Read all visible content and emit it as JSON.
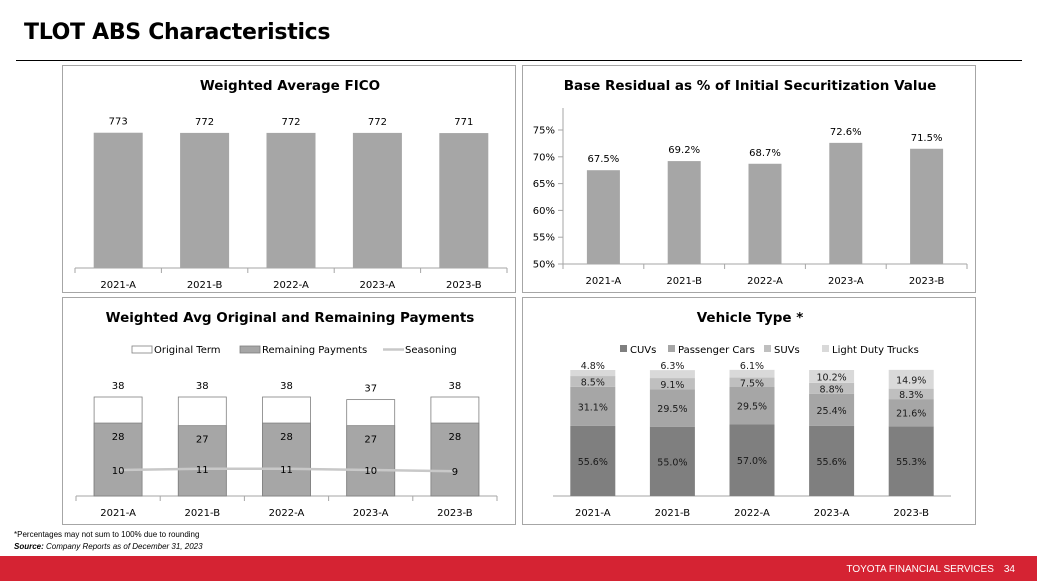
{
  "page": {
    "title": "TLOT ABS Characteristics",
    "footnote": "*Percentages may not sum to 100% due to rounding",
    "source_label": "Source:",
    "source_text": " Company Reports as of December 31, 2023",
    "footer_company": "TOYOTA FINANCIAL SERVICES",
    "page_number": "34",
    "brand_color": "#d52333"
  },
  "chart_data": [
    {
      "id": "fico",
      "type": "bar",
      "title": "Weighted Average FICO",
      "categories": [
        "2021-A",
        "2021-B",
        "2022-A",
        "2023-A",
        "2023-B"
      ],
      "values": [
        773,
        772,
        772,
        772,
        771
      ],
      "data_labels": [
        "773",
        "772",
        "772",
        "772",
        "771"
      ],
      "xlabel": "",
      "ylabel": "",
      "ylim": [
        0,
        800
      ],
      "y_axis_visible": false,
      "grid": false,
      "bar_color": "#a6a6a6"
    },
    {
      "id": "residual",
      "type": "bar",
      "title": "Base Residual as % of Initial Securitization Value",
      "categories": [
        "2021-A",
        "2021-B",
        "2022-A",
        "2023-A",
        "2023-B"
      ],
      "values": [
        67.5,
        69.2,
        68.7,
        72.6,
        71.5
      ],
      "data_labels": [
        "67.5%",
        "69.2%",
        "68.7%",
        "72.6%",
        "71.5%"
      ],
      "xlabel": "",
      "ylabel": "",
      "ylim": [
        50,
        77
      ],
      "yticks": [
        50,
        55,
        60,
        65,
        70,
        75
      ],
      "ytick_labels": [
        "50%",
        "55%",
        "60%",
        "65%",
        "70%",
        "75%"
      ],
      "grid": false,
      "bar_color": "#a6a6a6"
    },
    {
      "id": "payments",
      "type": "bar",
      "title": "Weighted Avg Original and Remaining Payments",
      "categories": [
        "2021-A",
        "2021-B",
        "2022-A",
        "2023-A",
        "2023-B"
      ],
      "series": [
        {
          "name": "Original Term",
          "kind": "bar",
          "values": [
            38,
            38,
            38,
            37,
            38
          ],
          "color": "#ffffff"
        },
        {
          "name": "Remaining Payments",
          "kind": "bar",
          "values": [
            28,
            27,
            28,
            27,
            28
          ],
          "color": "#a6a6a6"
        },
        {
          "name": "Seasoning",
          "kind": "line",
          "values": [
            10,
            11,
            11,
            10,
            9
          ],
          "color": "#c8c8c8"
        }
      ],
      "legend": "top",
      "ylim": [
        0,
        42
      ],
      "y_axis_visible": false,
      "grid": false
    },
    {
      "id": "vehicle",
      "type": "bar",
      "stacked": true,
      "title": "Vehicle Type *",
      "categories": [
        "2021-A",
        "2021-B",
        "2022-A",
        "2023-A",
        "2023-B"
      ],
      "series": [
        {
          "name": "CUVs",
          "values": [
            55.6,
            55.0,
            57.0,
            55.6,
            55.3
          ],
          "labels": [
            "55.6%",
            "55.0%",
            "57.0%",
            "55.6%",
            "55.3%"
          ],
          "color": "#7f7f7f"
        },
        {
          "name": "Passenger Cars",
          "values": [
            31.1,
            29.5,
            29.5,
            25.4,
            21.6
          ],
          "labels": [
            "31.1%",
            "29.5%",
            "29.5%",
            "25.4%",
            "21.6%"
          ],
          "color": "#a6a6a6"
        },
        {
          "name": "SUVs",
          "values": [
            8.5,
            9.1,
            7.5,
            8.8,
            8.3
          ],
          "labels": [
            "8.5%",
            "9.1%",
            "7.5%",
            "8.8%",
            "8.3%"
          ],
          "color": "#bfbfbf"
        },
        {
          "name": "Light Duty Trucks",
          "values": [
            4.8,
            6.3,
            6.1,
            10.2,
            14.9
          ],
          "labels": [
            "4.8%",
            "6.3%",
            "6.1%",
            "10.2%",
            "14.9%"
          ],
          "color": "#d9d9d9"
        }
      ],
      "legend": "top",
      "ylim": [
        0,
        100
      ],
      "y_axis_visible": false,
      "grid": false
    }
  ]
}
